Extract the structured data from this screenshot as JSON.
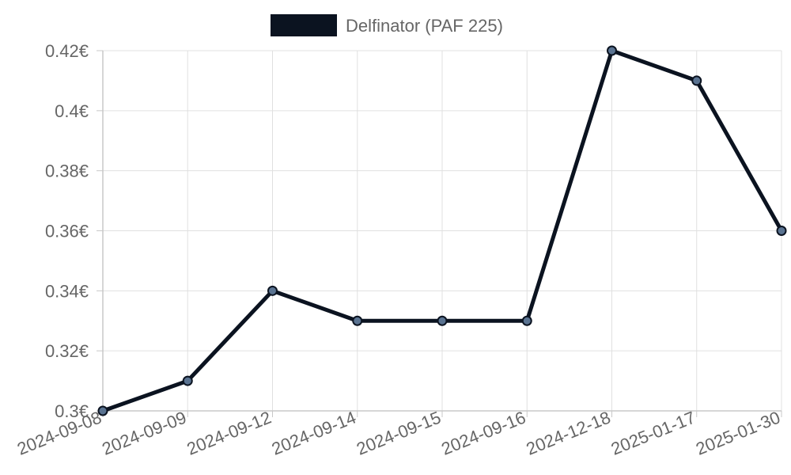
{
  "colors": {
    "series_line": "#0b1320",
    "point_fill": "#5a7391",
    "grid": "#e0e0e0",
    "axis": "#c8c8c8",
    "tick_text": "#666666",
    "background": "#ffffff"
  },
  "chart_data": {
    "type": "line",
    "title": "",
    "xlabel": "",
    "ylabel": "",
    "categories": [
      "2024-09-08",
      "2024-09-09",
      "2024-09-12",
      "2024-09-14",
      "2024-09-15",
      "2024-09-16",
      "2024-12-18",
      "2025-01-17",
      "2025-01-30"
    ],
    "series": [
      {
        "name": "Delfinator (PAF 225)",
        "values": [
          0.3,
          0.31,
          0.34,
          0.33,
          0.33,
          0.33,
          0.42,
          0.41,
          0.36
        ]
      }
    ],
    "ylim": [
      0.3,
      0.42
    ],
    "y_ticks": [
      0.3,
      0.32,
      0.34,
      0.36,
      0.38,
      0.4,
      0.42
    ],
    "y_tick_labels": [
      "0.3€",
      "0.32€",
      "0.34€",
      "0.36€",
      "0.38€",
      "0.4€",
      "0.42€"
    ],
    "grid": true,
    "legend_position": "top-center"
  }
}
